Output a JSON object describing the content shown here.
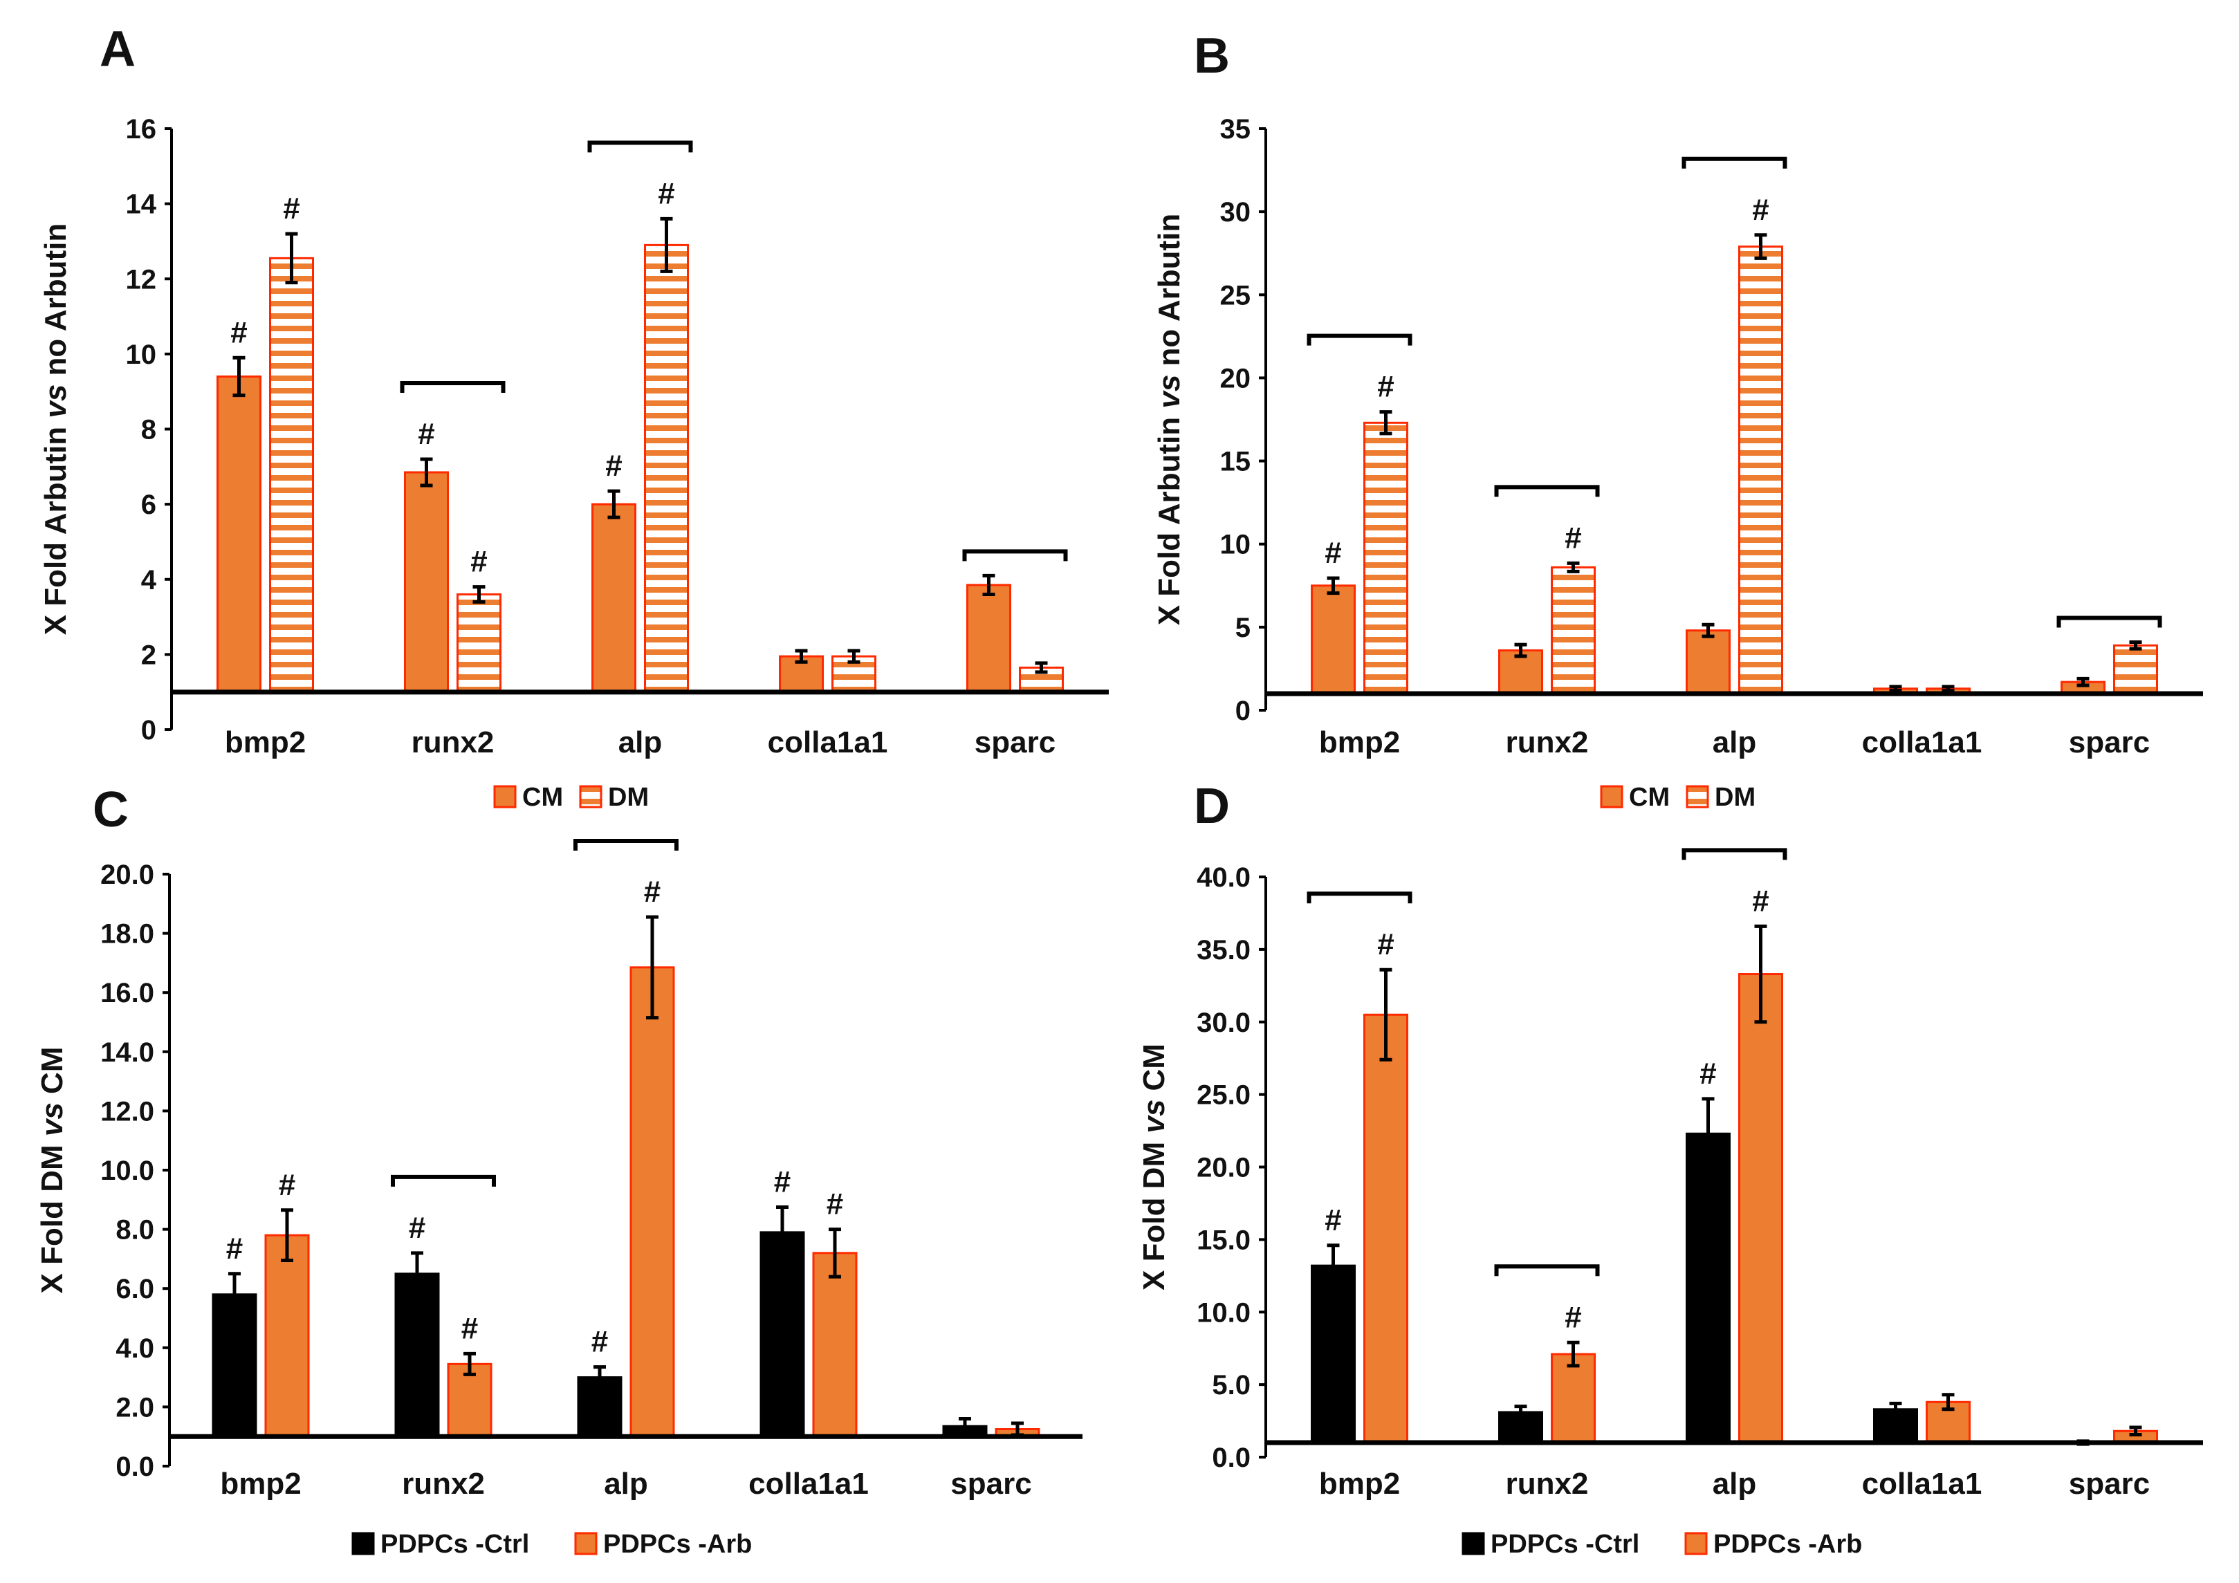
{
  "figure": {
    "description_colors": {
      "orange": "#ED7D31",
      "red_border": "#FF0000",
      "black": "#000000"
    }
  },
  "chart_data": [
    {
      "panel": "A",
      "type": "bar",
      "ylabel_parts": [
        "X Fold Arbutin ",
        "vs",
        "  no Arbutin"
      ],
      "categories": [
        "bmp2",
        "runx2",
        "alp",
        "colla1a1",
        "sparc"
      ],
      "ylim": [
        0,
        16
      ],
      "yticks": [
        0,
        2,
        4,
        6,
        8,
        10,
        12,
        14,
        16
      ],
      "tick_decimals": 0,
      "baseline": 1,
      "series": [
        {
          "name": "CM",
          "style": "solid",
          "values": [
            9.4,
            6.85,
            6.0,
            1.95,
            3.85
          ],
          "errors": [
            0.5,
            0.35,
            0.35,
            0.15,
            0.25
          ],
          "hash": [
            true,
            true,
            true,
            false,
            false
          ]
        },
        {
          "name": "DM",
          "style": "striped",
          "values": [
            12.55,
            3.6,
            12.9,
            1.95,
            1.65
          ],
          "errors": [
            0.65,
            0.2,
            0.7,
            0.15,
            0.12
          ],
          "hash": [
            true,
            true,
            true,
            false,
            false
          ]
        }
      ],
      "brackets": [
        1,
        2,
        4
      ],
      "legend": [
        "CM",
        "DM"
      ]
    },
    {
      "panel": "B",
      "type": "bar",
      "ylabel_parts": [
        "X Fold Arbutin ",
        "vs",
        "  no Arbutin"
      ],
      "categories": [
        "bmp2",
        "runx2",
        "alp",
        "colla1a1",
        "sparc"
      ],
      "ylim": [
        0,
        35
      ],
      "yticks": [
        0,
        5,
        10,
        15,
        20,
        25,
        30,
        35
      ],
      "tick_decimals": 0,
      "baseline": 1,
      "series": [
        {
          "name": "CM",
          "style": "solid",
          "values": [
            7.5,
            3.6,
            4.8,
            1.3,
            1.7
          ],
          "errors": [
            0.45,
            0.35,
            0.35,
            0.12,
            0.2
          ],
          "hash": [
            true,
            false,
            false,
            false,
            false
          ]
        },
        {
          "name": "DM",
          "style": "striped",
          "values": [
            17.3,
            8.6,
            27.9,
            1.3,
            3.9
          ],
          "errors": [
            0.65,
            0.25,
            0.7,
            0.12,
            0.2
          ],
          "hash": [
            true,
            true,
            true,
            false,
            false
          ]
        }
      ],
      "brackets": [
        0,
        1,
        2,
        4
      ],
      "legend": [
        "CM",
        "DM"
      ]
    },
    {
      "panel": "C",
      "type": "bar",
      "ylabel_parts": [
        "X Fold DM ",
        "vs",
        " CM"
      ],
      "categories": [
        "bmp2",
        "runx2",
        "alp",
        "colla1a1",
        "sparc"
      ],
      "ylim": [
        0,
        20
      ],
      "yticks": [
        0,
        2,
        4,
        6,
        8,
        10,
        12,
        14,
        16,
        18,
        20
      ],
      "tick_decimals": 1,
      "baseline": 1,
      "series": [
        {
          "name": "PDPCs -Ctrl",
          "style": "black",
          "values": [
            5.8,
            6.5,
            3.0,
            7.9,
            1.35
          ],
          "errors": [
            0.7,
            0.7,
            0.35,
            0.85,
            0.25
          ],
          "hash": [
            true,
            true,
            true,
            true,
            false
          ]
        },
        {
          "name": "PDPCs -Arb",
          "style": "solid",
          "values": [
            7.8,
            3.45,
            16.85,
            7.2,
            1.25
          ],
          "errors": [
            0.85,
            0.35,
            1.7,
            0.8,
            0.2
          ],
          "hash": [
            true,
            true,
            true,
            true,
            false
          ]
        }
      ],
      "brackets": [
        1,
        2
      ],
      "legend": [
        "PDPCs -Ctrl",
        "PDPCs -Arb"
      ]
    },
    {
      "panel": "D",
      "type": "bar",
      "ylabel_parts": [
        "X Fold DM ",
        "vs",
        " CM"
      ],
      "categories": [
        "bmp2",
        "runx2",
        "alp",
        "colla1a1",
        "sparc"
      ],
      "ylim": [
        0,
        40
      ],
      "yticks": [
        0,
        5,
        10,
        15,
        20,
        25,
        30,
        35,
        40
      ],
      "tick_decimals": 1,
      "baseline": 1,
      "series": [
        {
          "name": "PDPCs -Ctrl",
          "style": "black",
          "values": [
            13.2,
            3.1,
            22.3,
            3.3,
            1.0
          ],
          "errors": [
            1.4,
            0.4,
            2.4,
            0.4,
            0.1
          ],
          "hash": [
            true,
            false,
            true,
            false,
            false
          ]
        },
        {
          "name": "PDPCs -Arb",
          "style": "solid",
          "values": [
            30.5,
            7.1,
            33.3,
            3.8,
            1.8
          ],
          "errors": [
            3.1,
            0.8,
            3.3,
            0.5,
            0.25
          ],
          "hash": [
            true,
            true,
            true,
            false,
            false
          ]
        }
      ],
      "brackets": [
        0,
        1,
        2
      ],
      "legend": [
        "PDPCs -Ctrl",
        "PDPCs -Arb"
      ]
    }
  ],
  "symbols": {
    "significance": "#"
  }
}
